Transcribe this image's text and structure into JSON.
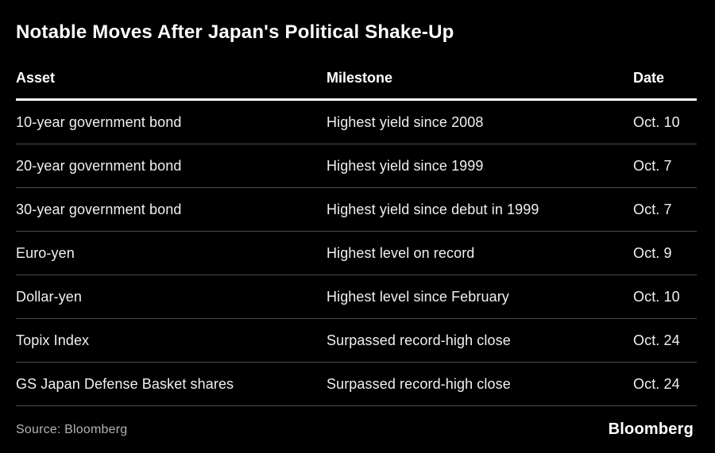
{
  "title": "Notable Moves After Japan's Political Shake-Up",
  "colors": {
    "background": "#000000",
    "title_text": "#ffffff",
    "body_text": "#f0f0f0",
    "header_rule": "#ffffff",
    "row_separator": "#4c4c4c",
    "source_text": "#b3b3b3"
  },
  "table": {
    "headers": [
      "Asset",
      "Milestone",
      "Date"
    ],
    "rows": [
      {
        "asset": "10-year government bond",
        "milestone": "Highest yield since 2008",
        "date": "Oct. 10"
      },
      {
        "asset": "20-year government bond",
        "milestone": "Highest yield since 1999",
        "date": "Oct. 7"
      },
      {
        "asset": "30-year government bond",
        "milestone": "Highest yield since debut in 1999",
        "date": "Oct. 7"
      },
      {
        "asset": "Euro-yen",
        "milestone": "Highest level on record",
        "date": "Oct. 9"
      },
      {
        "asset": "Dollar-yen",
        "milestone": "Highest level since February",
        "date": "Oct. 10"
      },
      {
        "asset": "Topix Index",
        "milestone": "Surpassed record-high close",
        "date": "Oct. 24"
      },
      {
        "asset": "GS Japan Defense Basket shares",
        "milestone": "Surpassed record-high close",
        "date": "Oct. 24"
      }
    ]
  },
  "footer": {
    "source": "Source: Bloomberg",
    "brand": "Bloomberg"
  },
  "chart_data": {
    "type": "table",
    "title": "Notable Moves After Japan's Political Shake-Up",
    "columns": [
      "Asset",
      "Milestone",
      "Date"
    ],
    "rows": [
      [
        "10-year government bond",
        "Highest yield since 2008",
        "Oct. 10"
      ],
      [
        "20-year government bond",
        "Highest yield since 1999",
        "Oct. 7"
      ],
      [
        "30-year government bond",
        "Highest yield since debut in 1999",
        "Oct. 7"
      ],
      [
        "Euro-yen",
        "Highest level on record",
        "Oct. 9"
      ],
      [
        "Dollar-yen",
        "Highest level since February",
        "Oct. 10"
      ],
      [
        "Topix Index",
        "Surpassed record-high close",
        "Oct. 24"
      ],
      [
        "GS Japan Defense Basket shares",
        "Surpassed record-high close",
        "Oct. 24"
      ]
    ],
    "source": "Source: Bloomberg",
    "layout": {
      "theme": "dark",
      "grid": "horizontal-rules-only",
      "legend": "none"
    }
  }
}
